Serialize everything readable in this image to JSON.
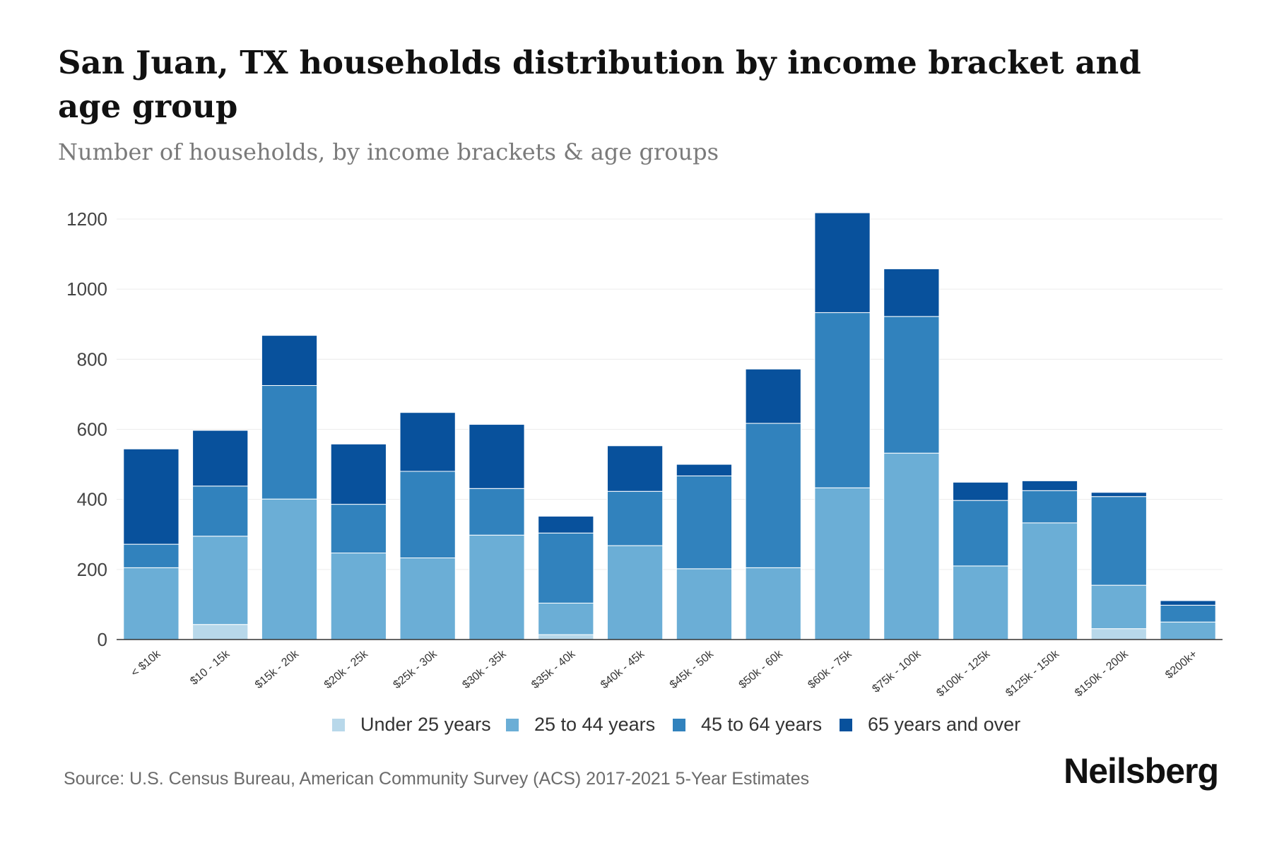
{
  "header": {
    "title": "San Juan, TX households distribution by income bracket and age group",
    "subtitle": "Number of households, by income brackets & age groups"
  },
  "footer": {
    "source": "Source: U.S. Census Bureau, American Community Survey (ACS) 2017-2021 5-Year Estimates",
    "brand": "Neilsberg"
  },
  "chart_data": {
    "type": "bar",
    "stacked": true,
    "title": "San Juan, TX households distribution by income bracket and age group",
    "subtitle": "Number of households, by income brackets & age groups",
    "xlabel": "",
    "ylabel": "",
    "ylim": [
      0,
      1200
    ],
    "yticks": [
      0,
      200,
      400,
      600,
      800,
      1000,
      1200
    ],
    "grid": true,
    "legend_position": "bottom",
    "categories": [
      "< $10k",
      "$10 - 15k",
      "$15k - 20k",
      "$20k - 25k",
      "$25k - 30k",
      "$30k - 35k",
      "$35k - 40k",
      "$40k - 45k",
      "$45k - 50k",
      "$50k - 60k",
      "$60k - 75k",
      "$75k - 100k",
      "$100k - 125k",
      "$125k - 150k",
      "$150k - 200k",
      "$200k+"
    ],
    "series": [
      {
        "name": "Under 25 years",
        "color": "#b8d8ea",
        "values": [
          0,
          43,
          0,
          0,
          0,
          0,
          14,
          0,
          0,
          0,
          0,
          0,
          0,
          0,
          31,
          0
        ]
      },
      {
        "name": "25 to 44 years",
        "color": "#6baed6",
        "values": [
          205,
          252,
          401,
          247,
          233,
          298,
          90,
          268,
          202,
          205,
          433,
          532,
          210,
          333,
          124,
          50
        ]
      },
      {
        "name": "45 to 64 years",
        "color": "#3182bd",
        "values": [
          67,
          143,
          324,
          139,
          247,
          133,
          200,
          155,
          265,
          412,
          500,
          390,
          187,
          92,
          253,
          48
        ]
      },
      {
        "name": "65 years and over",
        "color": "#08519c",
        "values": [
          272,
          159,
          143,
          172,
          168,
          183,
          48,
          130,
          33,
          155,
          285,
          136,
          52,
          28,
          12,
          13
        ]
      }
    ]
  }
}
